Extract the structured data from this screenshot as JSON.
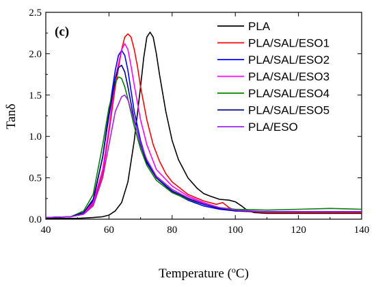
{
  "chart_data": {
    "type": "line",
    "panel_label": "(c)",
    "xlabel": {
      "prefix": "Temperature (",
      "sup": "o",
      "suffix": "C)"
    },
    "ylabel": "Tanδ",
    "xlim": [
      40,
      140
    ],
    "ylim": [
      0,
      2.5
    ],
    "xticks": [
      40,
      60,
      80,
      100,
      120,
      140
    ],
    "xtick_labels": [
      "40",
      "60",
      "80",
      "100",
      "120",
      "140"
    ],
    "yticks": [
      0.0,
      0.5,
      1.0,
      1.5,
      2.0,
      2.5
    ],
    "ytick_labels": [
      "0.0",
      "0.5",
      "1.0",
      "1.5",
      "2.0",
      "2.5"
    ],
    "legend_position": "top-right",
    "series": [
      {
        "name": "PLA",
        "color": "#000000",
        "x": [
          40,
          50,
          55,
          58,
          60,
          62,
          64,
          66,
          68,
          70,
          71,
          72,
          73,
          74,
          75,
          76,
          78,
          80,
          82,
          85,
          88,
          90,
          92,
          95,
          98,
          100,
          102,
          104,
          106,
          110,
          120,
          140
        ],
        "y": [
          0.01,
          0.01,
          0.02,
          0.03,
          0.05,
          0.1,
          0.2,
          0.45,
          0.95,
          1.6,
          1.95,
          2.2,
          2.26,
          2.2,
          2.0,
          1.75,
          1.3,
          0.95,
          0.72,
          0.5,
          0.37,
          0.31,
          0.28,
          0.24,
          0.23,
          0.21,
          0.16,
          0.1,
          0.08,
          0.07,
          0.07,
          0.07
        ]
      },
      {
        "name": "PLA/SAL/ESO1",
        "color": "#ff0000",
        "x": [
          40,
          48,
          52,
          55,
          58,
          60,
          62,
          64,
          65,
          66,
          67,
          68,
          69,
          70,
          72,
          74,
          76,
          78,
          80,
          85,
          90,
          94,
          96,
          98,
          100,
          105,
          110,
          120,
          140
        ],
        "y": [
          0.02,
          0.03,
          0.07,
          0.18,
          0.55,
          1.05,
          1.6,
          2.05,
          2.2,
          2.24,
          2.2,
          2.05,
          1.85,
          1.6,
          1.2,
          0.9,
          0.7,
          0.55,
          0.45,
          0.3,
          0.22,
          0.18,
          0.2,
          0.14,
          0.1,
          0.09,
          0.08,
          0.08,
          0.08
        ]
      },
      {
        "name": "PLA/SAL/ESO2",
        "color": "#0000ff",
        "x": [
          40,
          48,
          52,
          55,
          58,
          60,
          62,
          63,
          64,
          65,
          66,
          67,
          68,
          70,
          72,
          75,
          80,
          85,
          90,
          95,
          100,
          110,
          120,
          140
        ],
        "y": [
          0.02,
          0.03,
          0.08,
          0.22,
          0.75,
          1.3,
          1.8,
          1.98,
          2.04,
          1.98,
          1.8,
          1.55,
          1.3,
          0.95,
          0.7,
          0.5,
          0.33,
          0.23,
          0.16,
          0.12,
          0.1,
          0.09,
          0.09,
          0.09
        ]
      },
      {
        "name": "PLA/SAL/ESO3",
        "color": "#ff00ff",
        "x": [
          40,
          48,
          52,
          55,
          58,
          60,
          62,
          64,
          65,
          66,
          67,
          68,
          70,
          72,
          75,
          80,
          85,
          90,
          95,
          100,
          110,
          120,
          140
        ],
        "y": [
          0.02,
          0.03,
          0.07,
          0.2,
          0.6,
          1.1,
          1.7,
          2.05,
          2.12,
          2.05,
          1.85,
          1.62,
          1.2,
          0.9,
          0.6,
          0.4,
          0.28,
          0.2,
          0.14,
          0.1,
          0.09,
          0.09,
          0.09
        ]
      },
      {
        "name": "PLA/SAL/ESO4",
        "color": "#008000",
        "x": [
          40,
          48,
          52,
          55,
          58,
          60,
          62,
          63,
          64,
          65,
          66,
          68,
          70,
          72,
          75,
          80,
          85,
          90,
          95,
          100,
          110,
          120,
          130,
          140
        ],
        "y": [
          0.02,
          0.03,
          0.1,
          0.3,
          0.9,
          1.35,
          1.65,
          1.72,
          1.7,
          1.6,
          1.45,
          1.12,
          0.85,
          0.65,
          0.47,
          0.32,
          0.24,
          0.18,
          0.14,
          0.12,
          0.11,
          0.12,
          0.13,
          0.12
        ]
      },
      {
        "name": "PLA/SAL/ESO5",
        "color": "#00008b",
        "x": [
          40,
          48,
          52,
          55,
          58,
          60,
          62,
          63,
          64,
          65,
          66,
          67,
          68,
          70,
          72,
          75,
          80,
          85,
          90,
          95,
          100,
          110,
          120,
          140
        ],
        "y": [
          0.02,
          0.03,
          0.08,
          0.24,
          0.75,
          1.25,
          1.7,
          1.83,
          1.86,
          1.78,
          1.6,
          1.4,
          1.2,
          0.9,
          0.68,
          0.5,
          0.34,
          0.25,
          0.18,
          0.13,
          0.1,
          0.09,
          0.09,
          0.09
        ]
      },
      {
        "name": "PLA/ESO",
        "color": "#a020f0",
        "x": [
          40,
          48,
          52,
          55,
          58,
          60,
          62,
          64,
          65,
          66,
          67,
          68,
          70,
          72,
          75,
          80,
          85,
          90,
          95,
          100,
          110,
          120,
          140
        ],
        "y": [
          0.02,
          0.03,
          0.06,
          0.16,
          0.5,
          0.9,
          1.3,
          1.48,
          1.5,
          1.44,
          1.32,
          1.18,
          0.92,
          0.72,
          0.52,
          0.36,
          0.26,
          0.19,
          0.14,
          0.11,
          0.09,
          0.09,
          0.09
        ]
      }
    ]
  }
}
